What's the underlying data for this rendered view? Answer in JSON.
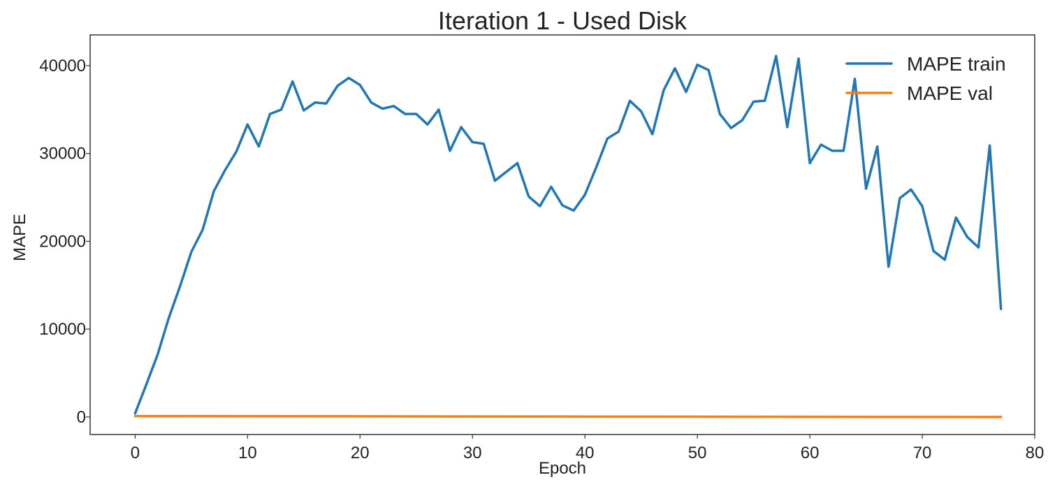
{
  "chart_data": {
    "type": "line",
    "title": "Iteration 1 - Used Disk",
    "xlabel": "Epoch",
    "ylabel": "MAPE",
    "xlim": [
      -4,
      80
    ],
    "ylim": [
      -2000,
      43500
    ],
    "x_ticks": [
      0,
      10,
      20,
      30,
      40,
      50,
      60,
      70,
      80
    ],
    "y_ticks": [
      0,
      10000,
      20000,
      30000,
      40000
    ],
    "grid": false,
    "legend_position": "top-right",
    "series": [
      {
        "name": "MAPE train",
        "color": "#1f77b4",
        "x": [
          0,
          1,
          2,
          3,
          4,
          5,
          6,
          7,
          8,
          9,
          10,
          11,
          12,
          13,
          14,
          15,
          16,
          17,
          18,
          19,
          20,
          21,
          22,
          23,
          24,
          25,
          26,
          27,
          28,
          29,
          30,
          31,
          32,
          33,
          34,
          35,
          36,
          37,
          38,
          39,
          40,
          41,
          42,
          43,
          44,
          45,
          46,
          47,
          48,
          49,
          50,
          51,
          52,
          53,
          54,
          55,
          56,
          57,
          58,
          59,
          60,
          61,
          62,
          63,
          64,
          65,
          66,
          67,
          68,
          69,
          70,
          71,
          72,
          73,
          74,
          75,
          76,
          77
        ],
        "y": [
          400,
          3700,
          7100,
          11300,
          14900,
          18800,
          21300,
          25700,
          28100,
          30200,
          33300,
          30800,
          34500,
          35000,
          38200,
          34900,
          35800,
          35700,
          37700,
          38600,
          37800,
          35800,
          35100,
          35400,
          34500,
          34500,
          33300,
          35000,
          30300,
          33000,
          31300,
          31100,
          26900,
          27900,
          28900,
          25100,
          24000,
          26200,
          24100,
          23500,
          25300,
          28400,
          31700,
          32500,
          36000,
          34800,
          32200,
          37200,
          39700,
          37000,
          40100,
          39500,
          34500,
          32900,
          33800,
          35900,
          36000,
          41100,
          33000,
          40800,
          28900,
          31000,
          30300,
          30300,
          38500,
          26000,
          30800,
          17100,
          24900,
          25900,
          24000,
          18900,
          17900,
          22700,
          20500,
          19300,
          30900,
          12300
        ]
      },
      {
        "name": "MAPE val",
        "color": "#ff7f0e",
        "x": [
          0,
          77
        ],
        "y": [
          100,
          0
        ]
      }
    ]
  }
}
